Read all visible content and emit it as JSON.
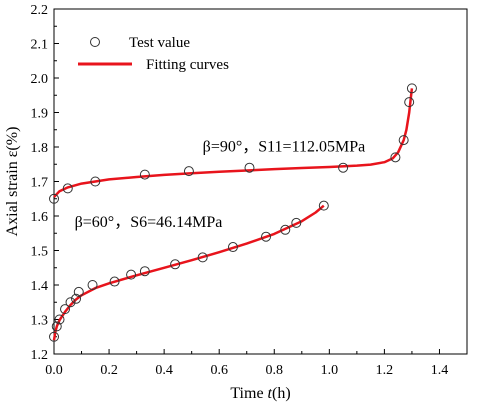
{
  "chart_data": {
    "type": "scatter",
    "xlabel_prefix": "Time ",
    "xlabel_var": "t",
    "xlabel_suffix": "(h)",
    "ylabel": "Axial strain ε(%)",
    "xlim": [
      0.0,
      1.5
    ],
    "ylim": [
      1.2,
      2.2
    ],
    "xticks": [
      "0.0",
      "0.2",
      "0.4",
      "0.6",
      "0.8",
      "1.0",
      "1.2",
      "1.4"
    ],
    "xtick_values": [
      0.0,
      0.2,
      0.4,
      0.6,
      0.8,
      1.0,
      1.2,
      1.4
    ],
    "yticks": [
      "1.2",
      "1.3",
      "1.4",
      "1.5",
      "1.6",
      "1.7",
      "1.8",
      "1.9",
      "2.0",
      "2.1",
      "2.2"
    ],
    "ytick_values": [
      1.2,
      1.3,
      1.4,
      1.5,
      1.6,
      1.7,
      1.8,
      1.9,
      2.0,
      2.1,
      2.2
    ],
    "grid": false,
    "legend_position": "top-left",
    "legend": {
      "points_label": "Test value",
      "curve_label": "Fitting curves"
    },
    "colors": {
      "curve": "#e8141c",
      "points": "#333333"
    },
    "series": [
      {
        "annotation": "β=90°，S11=112.05MPa",
        "test_points": [
          {
            "x": 0.0,
            "y": 1.65
          },
          {
            "x": 0.05,
            "y": 1.68
          },
          {
            "x": 0.15,
            "y": 1.7
          },
          {
            "x": 0.33,
            "y": 1.72
          },
          {
            "x": 0.49,
            "y": 1.73
          },
          {
            "x": 0.71,
            "y": 1.74
          },
          {
            "x": 1.05,
            "y": 1.74
          },
          {
            "x": 1.24,
            "y": 1.77
          },
          {
            "x": 1.27,
            "y": 1.82
          },
          {
            "x": 1.29,
            "y": 1.93
          },
          {
            "x": 1.3,
            "y": 1.97
          }
        ],
        "fit_curve": [
          {
            "x": 0.0,
            "y": 1.655
          },
          {
            "x": 0.02,
            "y": 1.672
          },
          {
            "x": 0.05,
            "y": 1.683
          },
          {
            "x": 0.1,
            "y": 1.694
          },
          {
            "x": 0.2,
            "y": 1.706
          },
          {
            "x": 0.3,
            "y": 1.713
          },
          {
            "x": 0.4,
            "y": 1.719
          },
          {
            "x": 0.5,
            "y": 1.724
          },
          {
            "x": 0.6,
            "y": 1.728
          },
          {
            "x": 0.7,
            "y": 1.732
          },
          {
            "x": 0.8,
            "y": 1.736
          },
          {
            "x": 0.9,
            "y": 1.739
          },
          {
            "x": 1.0,
            "y": 1.742
          },
          {
            "x": 1.1,
            "y": 1.746
          },
          {
            "x": 1.15,
            "y": 1.749
          },
          {
            "x": 1.2,
            "y": 1.756
          },
          {
            "x": 1.23,
            "y": 1.767
          },
          {
            "x": 1.25,
            "y": 1.785
          },
          {
            "x": 1.27,
            "y": 1.82
          },
          {
            "x": 1.28,
            "y": 1.85
          },
          {
            "x": 1.29,
            "y": 1.9
          },
          {
            "x": 1.3,
            "y": 1.97
          }
        ]
      },
      {
        "annotation": "β=60°，S6=46.14MPa",
        "test_points": [
          {
            "x": 0.0,
            "y": 1.25
          },
          {
            "x": 0.01,
            "y": 1.28
          },
          {
            "x": 0.02,
            "y": 1.3
          },
          {
            "x": 0.04,
            "y": 1.33
          },
          {
            "x": 0.06,
            "y": 1.35
          },
          {
            "x": 0.08,
            "y": 1.36
          },
          {
            "x": 0.09,
            "y": 1.38
          },
          {
            "x": 0.14,
            "y": 1.4
          },
          {
            "x": 0.22,
            "y": 1.41
          },
          {
            "x": 0.28,
            "y": 1.43
          },
          {
            "x": 0.33,
            "y": 1.44
          },
          {
            "x": 0.44,
            "y": 1.46
          },
          {
            "x": 0.54,
            "y": 1.48
          },
          {
            "x": 0.65,
            "y": 1.51
          },
          {
            "x": 0.77,
            "y": 1.54
          },
          {
            "x": 0.84,
            "y": 1.56
          },
          {
            "x": 0.88,
            "y": 1.58
          },
          {
            "x": 0.98,
            "y": 1.63
          }
        ],
        "fit_curve": [
          {
            "x": 0.0,
            "y": 1.24
          },
          {
            "x": 0.005,
            "y": 1.265
          },
          {
            "x": 0.01,
            "y": 1.28
          },
          {
            "x": 0.02,
            "y": 1.298
          },
          {
            "x": 0.04,
            "y": 1.322
          },
          {
            "x": 0.06,
            "y": 1.342
          },
          {
            "x": 0.08,
            "y": 1.358
          },
          {
            "x": 0.1,
            "y": 1.37
          },
          {
            "x": 0.15,
            "y": 1.391
          },
          {
            "x": 0.2,
            "y": 1.405
          },
          {
            "x": 0.3,
            "y": 1.428
          },
          {
            "x": 0.4,
            "y": 1.45
          },
          {
            "x": 0.5,
            "y": 1.472
          },
          {
            "x": 0.6,
            "y": 1.495
          },
          {
            "x": 0.7,
            "y": 1.52
          },
          {
            "x": 0.8,
            "y": 1.548
          },
          {
            "x": 0.9,
            "y": 1.585
          },
          {
            "x": 0.95,
            "y": 1.61
          },
          {
            "x": 0.98,
            "y": 1.63
          }
        ]
      }
    ]
  }
}
